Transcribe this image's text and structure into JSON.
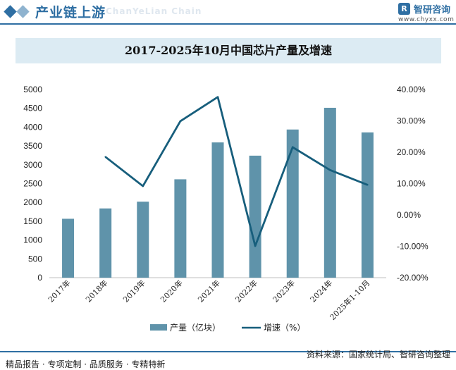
{
  "header": {
    "title": "产业链上游",
    "ghost_text": "ChanYeLian Chain",
    "brand_name": "智研咨询",
    "brand_url": "www.chyxx.com",
    "accent_color": "#2f6fa3"
  },
  "chart_data": {
    "type": "bar",
    "title": "2017-2025年10月中国芯片产量及增速",
    "categories": [
      "2017年",
      "2018年",
      "2019年",
      "2020年",
      "2021年",
      "2022年",
      "2023年",
      "2024年",
      "2025年1-10月"
    ],
    "series": [
      {
        "name": "产量（亿块）",
        "type": "bar",
        "axis": "left",
        "color": "#5f93aa",
        "values": [
          1565,
          1840,
          2020,
          2614,
          3594,
          3242,
          3937,
          4514,
          3860
        ]
      },
      {
        "name": "增速（%）",
        "type": "line",
        "axis": "right",
        "color": "#175e7c",
        "values": [
          null,
          18.5,
          9.2,
          29.9,
          37.6,
          -9.9,
          21.6,
          14.3,
          9.6
        ]
      }
    ],
    "y_left": {
      "min": 0,
      "max": 5000,
      "ticks": [
        0,
        500,
        1000,
        1500,
        2000,
        2500,
        3000,
        3500,
        4000,
        4500,
        5000
      ]
    },
    "y_right": {
      "min": -20,
      "max": 40,
      "ticks": [
        "-20.00%",
        "-10.00%",
        "0.00%",
        "10.00%",
        "20.00%",
        "30.00%",
        "40.00%"
      ]
    },
    "legend_position": "bottom",
    "grid": false
  },
  "footer": {
    "left_text": "精品报告 · 专项定制 · 品质服务 · 专精特新",
    "source_text": "资料来源：国家统计局、智研咨询整理"
  }
}
